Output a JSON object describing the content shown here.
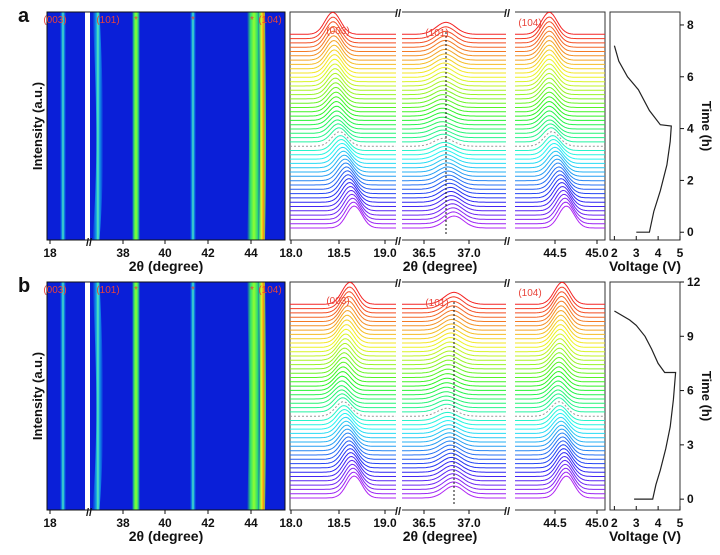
{
  "chart_data": [
    {
      "panel": "a",
      "type": "heatmap",
      "ylabel": "Intensity (a.u.)",
      "xlabel": "2θ (degree)",
      "xticks": [
        "18",
        "38",
        "40",
        "42",
        "44"
      ],
      "peak_labels": [
        "(003)",
        "(101)",
        "*",
        "*",
        "*",
        "(104)"
      ],
      "lines_2theta": [
        18.6,
        36.8,
        38.6,
        41.3,
        44.2,
        44.6
      ]
    },
    {
      "panel": "a",
      "type": "line",
      "xlabel": "2θ (degree)",
      "xticks": [
        "18.0",
        "18.5",
        "19.0",
        "36.5",
        "37.0",
        "44.5",
        "45.0"
      ],
      "peak_labels": [
        "(003)",
        "(101)",
        "(104)"
      ],
      "segments": [
        [
          18.0,
          19.25
        ],
        [
          36.3,
          37.6
        ],
        [
          44.0,
          45.05
        ]
      ],
      "peak_positions_start": [
        18.75,
        36.95,
        44.6
      ],
      "peak_positions_mid": [
        18.55,
        36.8,
        44.4
      ],
      "peak_positions_end": [
        18.5,
        36.85,
        44.4
      ],
      "n_scans": 46,
      "reference_line_2theta": 36.85
    },
    {
      "panel": "a",
      "type": "line",
      "xlabel": "Voltage (V)",
      "ylabel": "Time (h)",
      "xlim": [
        1.8,
        5
      ],
      "ylim": [
        -0.3,
        8.5
      ],
      "xticks": [
        "2",
        "3",
        "4",
        "5"
      ],
      "yticks": [
        "0",
        "2",
        "4",
        "6",
        "8"
      ],
      "x": [
        3.0,
        3.6,
        3.8,
        4.1,
        4.4,
        4.55,
        4.6,
        4.1,
        3.6,
        3.1,
        2.6,
        2.2,
        2.0
      ],
      "y": [
        0,
        0,
        0.8,
        1.6,
        2.6,
        3.5,
        4.1,
        4.15,
        4.7,
        5.5,
        6.0,
        6.6,
        7.2
      ]
    },
    {
      "panel": "b",
      "type": "heatmap",
      "ylabel": "Intensity (a.u.)",
      "xlabel": "2θ (degree)",
      "xticks": [
        "18",
        "38",
        "40",
        "42",
        "44"
      ],
      "peak_labels": [
        "(003)",
        "(101)",
        "*",
        "*",
        "*",
        "(104)"
      ],
      "lines_2theta": [
        18.6,
        36.8,
        38.6,
        41.3,
        44.2,
        44.6
      ]
    },
    {
      "panel": "b",
      "type": "line",
      "xlabel": "2θ (degree)",
      "xticks": [
        "18.0",
        "18.5",
        "19.0",
        "36.5",
        "37.0",
        "44.5",
        "45.0"
      ],
      "peak_labels": [
        "(003)",
        "(101)",
        "(104)"
      ],
      "segments": [
        [
          18.0,
          19.25
        ],
        [
          36.3,
          37.6
        ],
        [
          44.0,
          45.05
        ]
      ],
      "peak_positions_start": [
        18.75,
        36.95,
        44.6
      ],
      "peak_positions_mid": [
        18.6,
        36.85,
        44.5
      ],
      "peak_positions_end": [
        18.7,
        36.95,
        44.55
      ],
      "n_scans": 46,
      "reference_line_2theta": 36.95
    },
    {
      "panel": "b",
      "type": "line",
      "xlabel": "Voltage (V)",
      "ylabel": "Time (h)",
      "xlim": [
        1.8,
        5
      ],
      "ylim": [
        -0.6,
        12
      ],
      "xticks": [
        "2",
        "3",
        "4",
        "5"
      ],
      "yticks": [
        "0",
        "3",
        "6",
        "9",
        "12"
      ],
      "x": [
        2.9,
        3.75,
        3.9,
        4.1,
        4.35,
        4.55,
        4.7,
        4.8,
        4.3,
        4.0,
        3.7,
        3.4,
        3.0,
        2.7,
        2.0
      ],
      "y": [
        0,
        0,
        0.8,
        1.6,
        2.8,
        4.0,
        5.5,
        7.0,
        7.0,
        7.5,
        8.3,
        9.0,
        9.6,
        9.9,
        10.4
      ]
    }
  ],
  "panel_labels": [
    "a",
    "b"
  ],
  "colors": {
    "heat_bg": "#0a1fd8",
    "peak_label": "#e8443a",
    "axis": "#111111"
  }
}
